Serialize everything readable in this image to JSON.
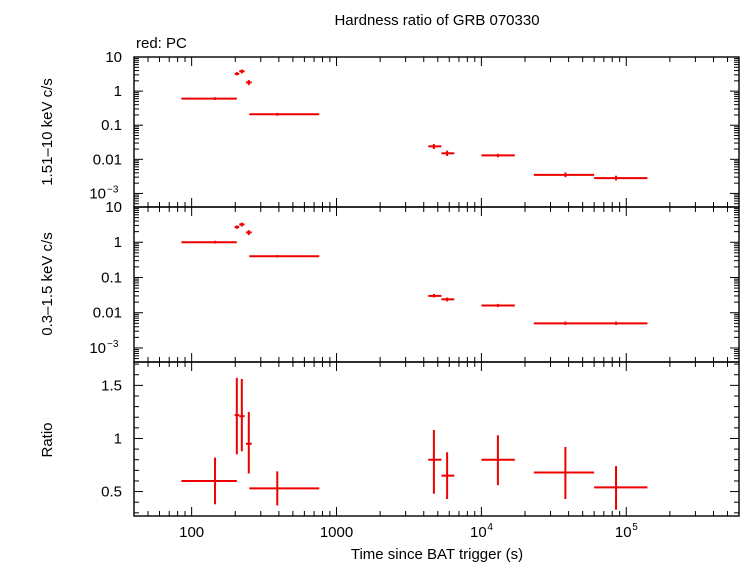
{
  "title": "Hardness ratio of GRB 070330",
  "subtitle": "red: PC",
  "xlabel": "Time since BAT trigger (s)",
  "colors": {
    "series": "#ee0000",
    "axis": "#000000"
  },
  "chart_data": [
    {
      "type": "scatter",
      "panel": "hard",
      "ylabel": "1.51–10 keV c/s",
      "xscale": "log",
      "yscale": "log",
      "xlim": [
        40,
        600000
      ],
      "ylim": [
        0.0004,
        10
      ],
      "yticks": [
        {
          "value": 10,
          "label": "10"
        },
        {
          "value": 1,
          "label": "1"
        },
        {
          "value": 0.1,
          "label": "0.1"
        },
        {
          "value": 0.01,
          "label": "0.01"
        },
        {
          "value": 0.001,
          "label": "10",
          "exp": "−3"
        }
      ],
      "points": [
        {
          "x": 145,
          "xlo": 85,
          "xhi": 205,
          "y": 0.6,
          "ylo": 0.55,
          "yhi": 0.66
        },
        {
          "x": 205,
          "xlo": 198,
          "xhi": 213,
          "y": 3.2,
          "ylo": 2.9,
          "yhi": 3.6
        },
        {
          "x": 222,
          "xlo": 213,
          "xhi": 232,
          "y": 3.8,
          "ylo": 3.3,
          "yhi": 4.3
        },
        {
          "x": 248,
          "xlo": 237,
          "xhi": 260,
          "y": 1.8,
          "ylo": 1.5,
          "yhi": 2.1
        },
        {
          "x": 390,
          "xlo": 250,
          "xhi": 760,
          "y": 0.21,
          "ylo": 0.19,
          "yhi": 0.23
        },
        {
          "x": 4700,
          "xlo": 4300,
          "xhi": 5300,
          "y": 0.024,
          "ylo": 0.02,
          "yhi": 0.028
        },
        {
          "x": 5800,
          "xlo": 5300,
          "xhi": 6500,
          "y": 0.015,
          "ylo": 0.0125,
          "yhi": 0.018
        },
        {
          "x": 13000,
          "xlo": 10000,
          "xhi": 17000,
          "y": 0.013,
          "ylo": 0.0115,
          "yhi": 0.0145
        },
        {
          "x": 38000,
          "xlo": 23000,
          "xhi": 60000,
          "y": 0.0035,
          "ylo": 0.003,
          "yhi": 0.0041
        },
        {
          "x": 85000,
          "xlo": 60000,
          "xhi": 140000,
          "y": 0.0028,
          "ylo": 0.0024,
          "yhi": 0.0033
        }
      ]
    },
    {
      "type": "scatter",
      "panel": "soft",
      "ylabel": "0.3–1.5 keV c/s",
      "xscale": "log",
      "yscale": "log",
      "xlim": [
        40,
        600000
      ],
      "ylim": [
        0.0004,
        10
      ],
      "yticks": [
        {
          "value": 10,
          "label": "10"
        },
        {
          "value": 1,
          "label": "1"
        },
        {
          "value": 0.1,
          "label": "0.1"
        },
        {
          "value": 0.01,
          "label": "0.01"
        },
        {
          "value": 0.001,
          "label": "10",
          "exp": "−3"
        }
      ],
      "points": [
        {
          "x": 145,
          "xlo": 85,
          "xhi": 205,
          "y": 1.0,
          "ylo": 0.92,
          "yhi": 1.1
        },
        {
          "x": 205,
          "xlo": 198,
          "xhi": 213,
          "y": 2.7,
          "ylo": 2.4,
          "yhi": 3.0
        },
        {
          "x": 222,
          "xlo": 213,
          "xhi": 232,
          "y": 3.2,
          "ylo": 2.8,
          "yhi": 3.6
        },
        {
          "x": 248,
          "xlo": 237,
          "xhi": 260,
          "y": 1.9,
          "ylo": 1.6,
          "yhi": 2.2
        },
        {
          "x": 390,
          "xlo": 250,
          "xhi": 760,
          "y": 0.4,
          "ylo": 0.37,
          "yhi": 0.43
        },
        {
          "x": 4700,
          "xlo": 4300,
          "xhi": 5300,
          "y": 0.03,
          "ylo": 0.027,
          "yhi": 0.034
        },
        {
          "x": 5800,
          "xlo": 5300,
          "xhi": 6500,
          "y": 0.024,
          "ylo": 0.021,
          "yhi": 0.027
        },
        {
          "x": 13000,
          "xlo": 10000,
          "xhi": 17000,
          "y": 0.016,
          "ylo": 0.0145,
          "yhi": 0.0178
        },
        {
          "x": 38000,
          "xlo": 23000,
          "xhi": 60000,
          "y": 0.005,
          "ylo": 0.0045,
          "yhi": 0.0056
        },
        {
          "x": 85000,
          "xlo": 60000,
          "xhi": 140000,
          "y": 0.005,
          "ylo": 0.0045,
          "yhi": 0.0056
        }
      ]
    },
    {
      "type": "scatter",
      "panel": "ratio",
      "ylabel": "Ratio",
      "xscale": "log",
      "yscale": "linear",
      "xlim": [
        40,
        600000
      ],
      "ylim": [
        0.27,
        1.72
      ],
      "yticks": [
        {
          "value": 0.5,
          "label": "0.5"
        },
        {
          "value": 1,
          "label": "1"
        },
        {
          "value": 1.5,
          "label": "1.5"
        }
      ],
      "xticks": [
        {
          "value": 100,
          "label": "100"
        },
        {
          "value": 1000,
          "label": "1000"
        },
        {
          "value": 10000,
          "label": "10",
          "exp": "4"
        },
        {
          "value": 100000,
          "label": "10",
          "exp": "5"
        }
      ],
      "points": [
        {
          "x": 145,
          "xlo": 85,
          "xhi": 205,
          "y": 0.6,
          "ylo": 0.38,
          "yhi": 0.82
        },
        {
          "x": 205,
          "xlo": 198,
          "xhi": 213,
          "y": 1.22,
          "ylo": 0.85,
          "yhi": 1.57
        },
        {
          "x": 222,
          "xlo": 213,
          "xhi": 232,
          "y": 1.21,
          "ylo": 0.88,
          "yhi": 1.56
        },
        {
          "x": 248,
          "xlo": 237,
          "xhi": 260,
          "y": 0.95,
          "ylo": 0.67,
          "yhi": 1.25
        },
        {
          "x": 390,
          "xlo": 250,
          "xhi": 760,
          "y": 0.53,
          "ylo": 0.37,
          "yhi": 0.69
        },
        {
          "x": 4700,
          "xlo": 4300,
          "xhi": 5300,
          "y": 0.8,
          "ylo": 0.48,
          "yhi": 1.08
        },
        {
          "x": 5800,
          "xlo": 5300,
          "xhi": 6500,
          "y": 0.65,
          "ylo": 0.43,
          "yhi": 0.87
        },
        {
          "x": 13000,
          "xlo": 10000,
          "xhi": 17000,
          "y": 0.8,
          "ylo": 0.56,
          "yhi": 1.03
        },
        {
          "x": 38000,
          "xlo": 23000,
          "xhi": 60000,
          "y": 0.68,
          "ylo": 0.43,
          "yhi": 0.92
        },
        {
          "x": 85000,
          "xlo": 60000,
          "xhi": 140000,
          "y": 0.54,
          "ylo": 0.33,
          "yhi": 0.74
        }
      ]
    }
  ]
}
